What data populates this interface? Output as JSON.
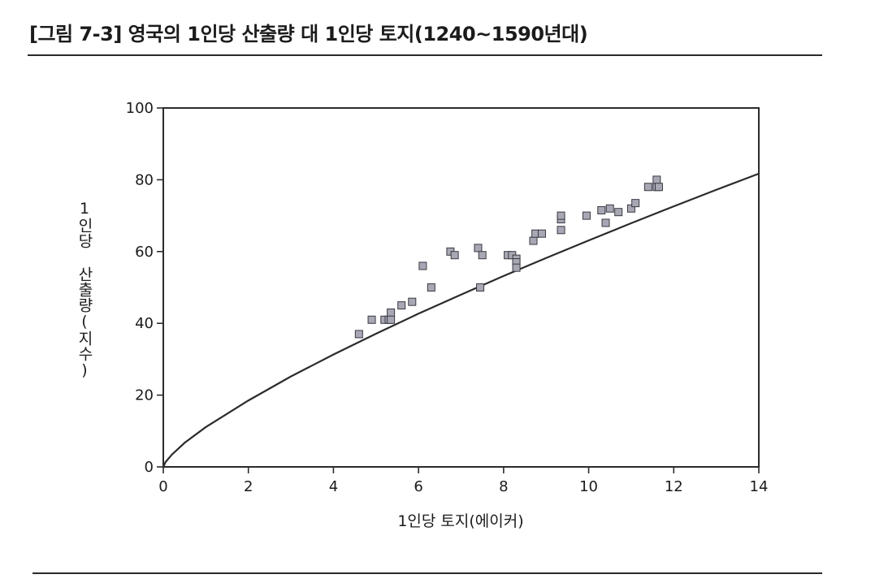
{
  "figure": {
    "title": "[그림 7-3] 영국의 1인당 산출량 대 1인당 토지(1240~1590년대)"
  },
  "chart_data": {
    "type": "scatter",
    "title": "[그림 7-3] 영국의 1인당 산출량 대 1인당 토지(1240~1590년대)",
    "xlabel": "1인당 토지(에이커)",
    "ylabel": "1인당 산출량(지수)",
    "xlim": [
      0,
      14
    ],
    "ylim": [
      0,
      100
    ],
    "x_ticks": [
      "0",
      "2",
      "4",
      "6",
      "8",
      "10",
      "12",
      "14"
    ],
    "y_ticks": [
      "0",
      "20",
      "40",
      "60",
      "80",
      "100"
    ],
    "grid": false,
    "legend": "none",
    "marker_color": "#a8a8b4",
    "line_color": "#2b2b2b",
    "series": [
      {
        "kind": "points",
        "x": [
          4.6,
          4.9,
          5.2,
          5.3,
          5.35,
          5.35,
          5.6,
          5.85,
          6.1,
          6.3,
          6.75,
          6.85,
          7.4,
          7.45,
          7.5,
          8.1,
          8.2,
          8.3,
          8.3,
          8.3,
          8.7,
          8.75,
          8.9,
          9.35,
          9.35,
          9.35,
          9.95,
          10.3,
          10.4,
          10.5,
          10.7,
          11.0,
          11.1,
          11.4,
          11.6,
          11.6,
          11.65
        ],
        "y": [
          37,
          41,
          41,
          41,
          43,
          41,
          45,
          46,
          56,
          50,
          60,
          59,
          61,
          50,
          59,
          59,
          59,
          58,
          57,
          55.5,
          63,
          65,
          65,
          66,
          69,
          70,
          70,
          71.5,
          68,
          72,
          71,
          72,
          73.5,
          78,
          78,
          80,
          78
        ]
      },
      {
        "kind": "fitted-curve",
        "x": [
          0,
          0.05,
          0.2,
          0.5,
          1,
          2,
          3,
          4,
          5,
          6,
          7,
          8,
          9,
          10,
          11,
          12,
          13,
          14
        ],
        "y": [
          0,
          1.3,
          3.4,
          6.7,
          11.1,
          18.5,
          25.2,
          31.3,
          37.1,
          42.7,
          48.0,
          53.2,
          58.2,
          63.1,
          67.9,
          72.6,
          77.2,
          81.7
        ]
      }
    ]
  }
}
